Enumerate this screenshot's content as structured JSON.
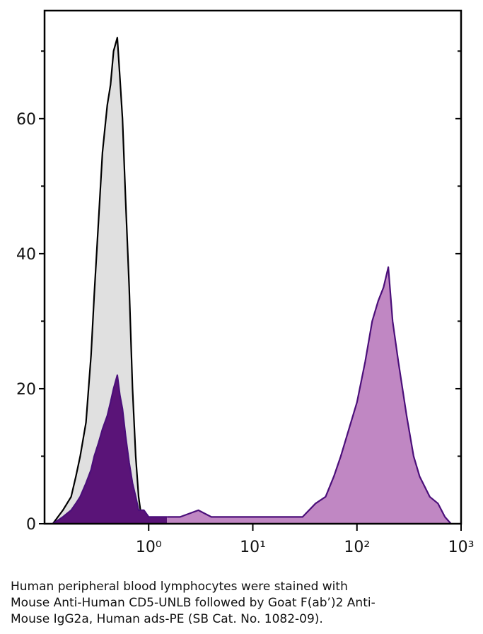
{
  "chart_data": {
    "type": "histogram-overlay",
    "xscale": "log",
    "xlim": [
      0.1,
      1000
    ],
    "xticks": [
      {
        "value": 1,
        "label": "10⁰"
      },
      {
        "value": 10,
        "label": "10¹"
      },
      {
        "value": 100,
        "label": "10²"
      },
      {
        "value": 1000,
        "label": "10³"
      }
    ],
    "ylim": [
      0,
      76
    ],
    "yticks": [
      0,
      20,
      40,
      60
    ],
    "yminorticks": [
      10,
      30,
      50,
      70
    ],
    "series": [
      {
        "color": "#000000",
        "fill": "#e0e0e0",
        "x": [
          0.12,
          0.15,
          0.18,
          0.2,
          0.22,
          0.25,
          0.28,
          0.3,
          0.33,
          0.36,
          0.4,
          0.43,
          0.46,
          0.5,
          0.53,
          0.56,
          0.6,
          0.65,
          0.7,
          0.75,
          0.8,
          0.85,
          0.9
        ],
        "values": [
          0,
          2,
          4,
          7,
          10,
          15,
          25,
          34,
          45,
          55,
          62,
          65,
          70,
          72,
          66,
          60,
          48,
          35,
          20,
          10,
          4,
          1,
          0
        ]
      },
      {
        "color": "#4b0f7a",
        "fill": "#5a1478",
        "x": [
          0.12,
          0.15,
          0.18,
          0.2,
          0.22,
          0.25,
          0.28,
          0.3,
          0.33,
          0.36,
          0.4,
          0.43,
          0.46,
          0.5,
          0.53,
          0.56,
          0.6,
          0.65,
          0.7,
          0.75,
          0.8,
          0.9,
          1.0,
          1.2,
          1.5
        ],
        "values": [
          0,
          1,
          2,
          3,
          4,
          6,
          8,
          10,
          12,
          14,
          16,
          18,
          20,
          22,
          19,
          17,
          13,
          9,
          6,
          4,
          2,
          2,
          1,
          1,
          1
        ]
      },
      {
        "color": "#4b0f7a",
        "fill": "#c087c3",
        "x": [
          1.5,
          2,
          3,
          4,
          5,
          7,
          10,
          15,
          20,
          30,
          40,
          50,
          60,
          70,
          80,
          100,
          120,
          140,
          160,
          180,
          200,
          220,
          250,
          300,
          350,
          400,
          500,
          600,
          700,
          800
        ],
        "values": [
          1,
          1,
          2,
          1,
          1,
          1,
          1,
          1,
          1,
          1,
          3,
          4,
          7,
          10,
          13,
          18,
          24,
          30,
          33,
          35,
          38,
          30,
          24,
          16,
          10,
          7,
          4,
          3,
          1,
          0
        ]
      }
    ],
    "caption": [
      "Human peripheral blood lymphocytes were stained with",
      "Mouse Anti-Human CD5-UNLB followed by Goat F(ab’)2 Anti-",
      "Mouse IgG2a, Human ads-PE (SB Cat. No. 1082-09)."
    ]
  }
}
